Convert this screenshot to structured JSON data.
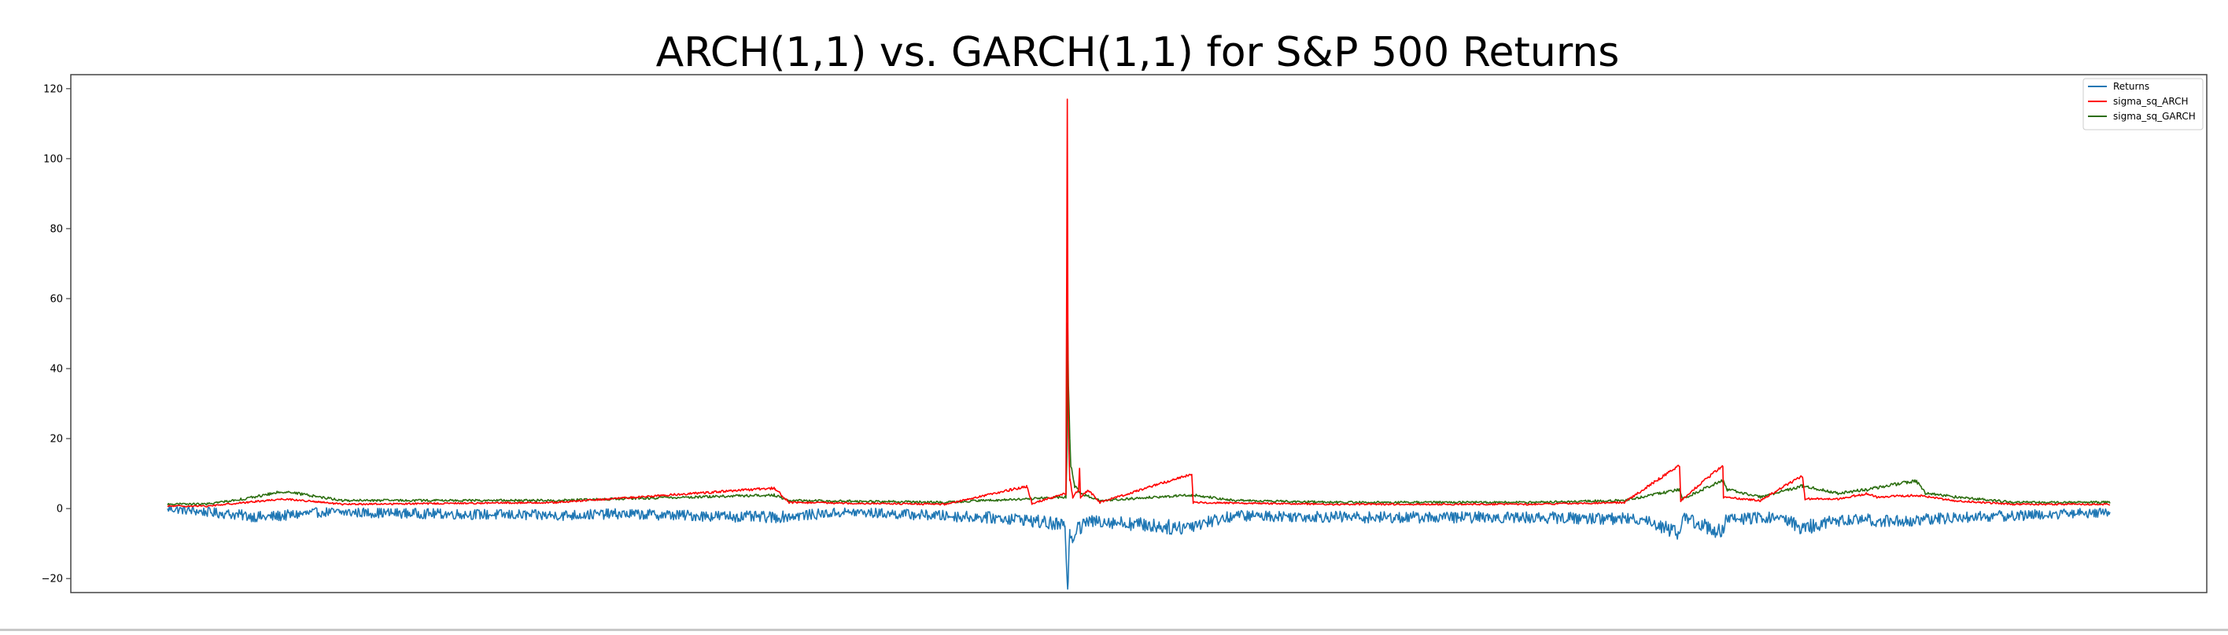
{
  "chart_data": {
    "type": "line",
    "title": "ARCH(1,1) vs. GARCH(1,1) for S&P 500 Returns",
    "xlabel": "",
    "ylabel": "",
    "x_range": [
      0,
      1
    ],
    "ylim": [
      -24,
      124
    ],
    "y_ticks": [
      {
        "value": -20,
        "label": "−20"
      },
      {
        "value": 0,
        "label": "0"
      },
      {
        "value": 20,
        "label": "20"
      },
      {
        "value": 40,
        "label": "40"
      },
      {
        "value": 60,
        "label": "60"
      },
      {
        "value": 80,
        "label": "80"
      },
      {
        "value": 100,
        "label": "100"
      },
      {
        "value": 120,
        "label": "120"
      }
    ],
    "x_ticks_visible": false,
    "grid": false,
    "legend_position": "top-right",
    "series": [
      {
        "name": "Returns",
        "color": "#1f77b4",
        "draw_order": 1,
        "noise": {
          "amplitude": 1.2,
          "polarity": "both"
        },
        "points": [
          [
            0.0,
            0.0
          ],
          [
            0.03,
            -1.5
          ],
          [
            0.05,
            -2.5
          ],
          [
            0.08,
            -1.0
          ],
          [
            0.2,
            -2.0
          ],
          [
            0.23,
            -1.5
          ],
          [
            0.312,
            -2.5
          ],
          [
            0.35,
            -1.0
          ],
          [
            0.42,
            -2.5
          ],
          [
            0.44,
            -3.0
          ],
          [
            0.462,
            -5.0
          ],
          [
            0.4634,
            -23.0
          ],
          [
            0.4645,
            -6.0
          ],
          [
            0.466,
            -9.0
          ],
          [
            0.469,
            -4.0
          ],
          [
            0.4705,
            -6.5
          ],
          [
            0.472,
            -4.0
          ],
          [
            0.48,
            -3.5
          ],
          [
            0.52,
            -5.5
          ],
          [
            0.55,
            -2.0
          ],
          [
            0.62,
            -2.5
          ],
          [
            0.7,
            -2.5
          ],
          [
            0.76,
            -3.0
          ],
          [
            0.7785,
            -7.0
          ],
          [
            0.78,
            -2.5
          ],
          [
            0.801,
            -7.0
          ],
          [
            0.802,
            -3.0
          ],
          [
            0.83,
            -2.5
          ],
          [
            0.842,
            -5.5
          ],
          [
            0.86,
            -3.5
          ],
          [
            0.87,
            -3.0
          ],
          [
            0.88,
            -3.5
          ],
          [
            0.9,
            -3.5
          ],
          [
            0.92,
            -2.5
          ],
          [
            0.95,
            -2.0
          ],
          [
            1.0,
            -1.0
          ]
        ]
      },
      {
        "name": "sigma_sq_ARCH",
        "color": "#ff0000",
        "draw_order": 3,
        "noise": {
          "amplitude": 0.4,
          "polarity": "positive"
        },
        "points": [
          [
            0.0,
            0.5
          ],
          [
            0.02,
            0.5
          ],
          [
            0.04,
            1.5
          ],
          [
            0.06,
            2.5
          ],
          [
            0.09,
            1.0
          ],
          [
            0.2,
            1.5
          ],
          [
            0.3125,
            5.5
          ],
          [
            0.32,
            1.5
          ],
          [
            0.4,
            1.0
          ],
          [
            0.4425,
            6.0
          ],
          [
            0.445,
            1.2
          ],
          [
            0.4625,
            4.0
          ],
          [
            0.4632,
            117.0
          ],
          [
            0.4636,
            30.0
          ],
          [
            0.464,
            17.0
          ],
          [
            0.4645,
            8.0
          ],
          [
            0.466,
            3.0
          ],
          [
            0.469,
            5.0
          ],
          [
            0.4695,
            11.5
          ],
          [
            0.47,
            3.0
          ],
          [
            0.474,
            5.0
          ],
          [
            0.48,
            1.5
          ],
          [
            0.5273,
            9.5
          ],
          [
            0.528,
            1.5
          ],
          [
            0.6,
            1.0
          ],
          [
            0.7,
            1.0
          ],
          [
            0.75,
            1.5
          ],
          [
            0.7784,
            12.0
          ],
          [
            0.779,
            2.0
          ],
          [
            0.8007,
            12.0
          ],
          [
            0.801,
            3.0
          ],
          [
            0.82,
            2.0
          ],
          [
            0.8417,
            9.0
          ],
          [
            0.843,
            2.5
          ],
          [
            0.86,
            2.5
          ],
          [
            0.875,
            4.0
          ],
          [
            0.88,
            3.0
          ],
          [
            0.9,
            3.5
          ],
          [
            0.92,
            2.0
          ],
          [
            0.95,
            1.0
          ],
          [
            1.0,
            1.0
          ]
        ]
      },
      {
        "name": "sigma_sq_GARCH",
        "color": "#2c6e10",
        "draw_order": 2,
        "noise": {
          "amplitude": 0.5,
          "polarity": "positive"
        },
        "points": [
          [
            0.0,
            1.0
          ],
          [
            0.02,
            1.0
          ],
          [
            0.04,
            2.5
          ],
          [
            0.06,
            4.5
          ],
          [
            0.09,
            2.0
          ],
          [
            0.2,
            2.0
          ],
          [
            0.3125,
            3.5
          ],
          [
            0.32,
            2.0
          ],
          [
            0.4,
            1.5
          ],
          [
            0.445,
            2.5
          ],
          [
            0.4625,
            3.0
          ],
          [
            0.463,
            15.0
          ],
          [
            0.4634,
            53.0
          ],
          [
            0.4638,
            35.0
          ],
          [
            0.4645,
            20.0
          ],
          [
            0.465,
            12.0
          ],
          [
            0.467,
            6.0
          ],
          [
            0.47,
            4.0
          ],
          [
            0.48,
            2.0
          ],
          [
            0.5273,
            3.5
          ],
          [
            0.55,
            2.0
          ],
          [
            0.6,
            1.5
          ],
          [
            0.7,
            1.5
          ],
          [
            0.75,
            2.0
          ],
          [
            0.7784,
            5.0
          ],
          [
            0.78,
            2.5
          ],
          [
            0.8007,
            7.5
          ],
          [
            0.803,
            5.0
          ],
          [
            0.82,
            3.0
          ],
          [
            0.8417,
            6.0
          ],
          [
            0.86,
            4.0
          ],
          [
            0.875,
            5.0
          ],
          [
            0.9,
            7.5
          ],
          [
            0.905,
            4.0
          ],
          [
            0.92,
            3.0
          ],
          [
            0.95,
            1.5
          ],
          [
            1.0,
            1.5
          ]
        ]
      }
    ]
  }
}
